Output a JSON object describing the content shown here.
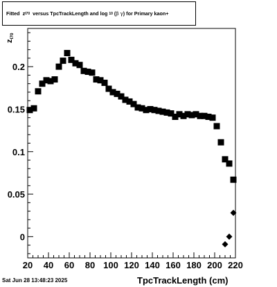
{
  "title": {
    "prefix": "Fitted",
    "z": "z",
    "z_sub": "I70",
    "middle": "versus TpcTrackLength and log",
    "log_sub": "10",
    "beta": "β",
    "gamma": "γ",
    "suffix": ") for Primary kaon+",
    "open_paren": "("
  },
  "footer": "Sat Jun 28 13:48:23 2025",
  "chart_data": {
    "type": "scatter",
    "xlabel": "TpcTrackLength (cm)",
    "ylabel": "z",
    "ylabel_sub": "I70",
    "xlim": [
      20,
      220
    ],
    "ylim": [
      -0.025,
      0.245
    ],
    "xticks": [
      20,
      40,
      60,
      80,
      100,
      120,
      140,
      160,
      180,
      200,
      220
    ],
    "yticks": [
      0,
      0.05,
      0.1,
      0.15,
      0.2
    ],
    "ytick_labels": [
      "0",
      "0.05",
      "0.1",
      "0.15",
      "0.2"
    ],
    "marker": "square",
    "points": [
      {
        "x": 22,
        "y": 0.149
      },
      {
        "x": 26,
        "y": 0.151
      },
      {
        "x": 30,
        "y": 0.171
      },
      {
        "x": 34,
        "y": 0.18
      },
      {
        "x": 38,
        "y": 0.184
      },
      {
        "x": 42,
        "y": 0.183
      },
      {
        "x": 46,
        "y": 0.185
      },
      {
        "x": 50,
        "y": 0.2
      },
      {
        "x": 54,
        "y": 0.207
      },
      {
        "x": 58,
        "y": 0.216
      },
      {
        "x": 62,
        "y": 0.208
      },
      {
        "x": 66,
        "y": 0.204
      },
      {
        "x": 70,
        "y": 0.202
      },
      {
        "x": 74,
        "y": 0.195
      },
      {
        "x": 78,
        "y": 0.194
      },
      {
        "x": 82,
        "y": 0.193
      },
      {
        "x": 86,
        "y": 0.185
      },
      {
        "x": 90,
        "y": 0.184
      },
      {
        "x": 94,
        "y": 0.181
      },
      {
        "x": 98,
        "y": 0.174
      },
      {
        "x": 102,
        "y": 0.17
      },
      {
        "x": 106,
        "y": 0.168
      },
      {
        "x": 110,
        "y": 0.165
      },
      {
        "x": 114,
        "y": 0.161
      },
      {
        "x": 118,
        "y": 0.159
      },
      {
        "x": 122,
        "y": 0.156
      },
      {
        "x": 126,
        "y": 0.152
      },
      {
        "x": 130,
        "y": 0.151
      },
      {
        "x": 134,
        "y": 0.149
      },
      {
        "x": 138,
        "y": 0.15
      },
      {
        "x": 142,
        "y": 0.149
      },
      {
        "x": 146,
        "y": 0.148
      },
      {
        "x": 150,
        "y": 0.147
      },
      {
        "x": 154,
        "y": 0.146
      },
      {
        "x": 158,
        "y": 0.145
      },
      {
        "x": 162,
        "y": 0.141
      },
      {
        "x": 166,
        "y": 0.144
      },
      {
        "x": 170,
        "y": 0.142
      },
      {
        "x": 174,
        "y": 0.144
      },
      {
        "x": 178,
        "y": 0.143
      },
      {
        "x": 182,
        "y": 0.144
      },
      {
        "x": 186,
        "y": 0.142
      },
      {
        "x": 190,
        "y": 0.142
      },
      {
        "x": 194,
        "y": 0.141
      },
      {
        "x": 198,
        "y": 0.14
      },
      {
        "x": 202,
        "y": 0.13
      },
      {
        "x": 206,
        "y": 0.111
      },
      {
        "x": 210,
        "y": 0.091
      },
      {
        "x": 214,
        "y": 0.086
      },
      {
        "x": 218,
        "y": 0.067
      }
    ],
    "diamonds": [
      {
        "x": 218,
        "y": 0.028
      },
      {
        "x": 214,
        "y": 0.0
      },
      {
        "x": 210,
        "y": -0.009
      }
    ]
  }
}
